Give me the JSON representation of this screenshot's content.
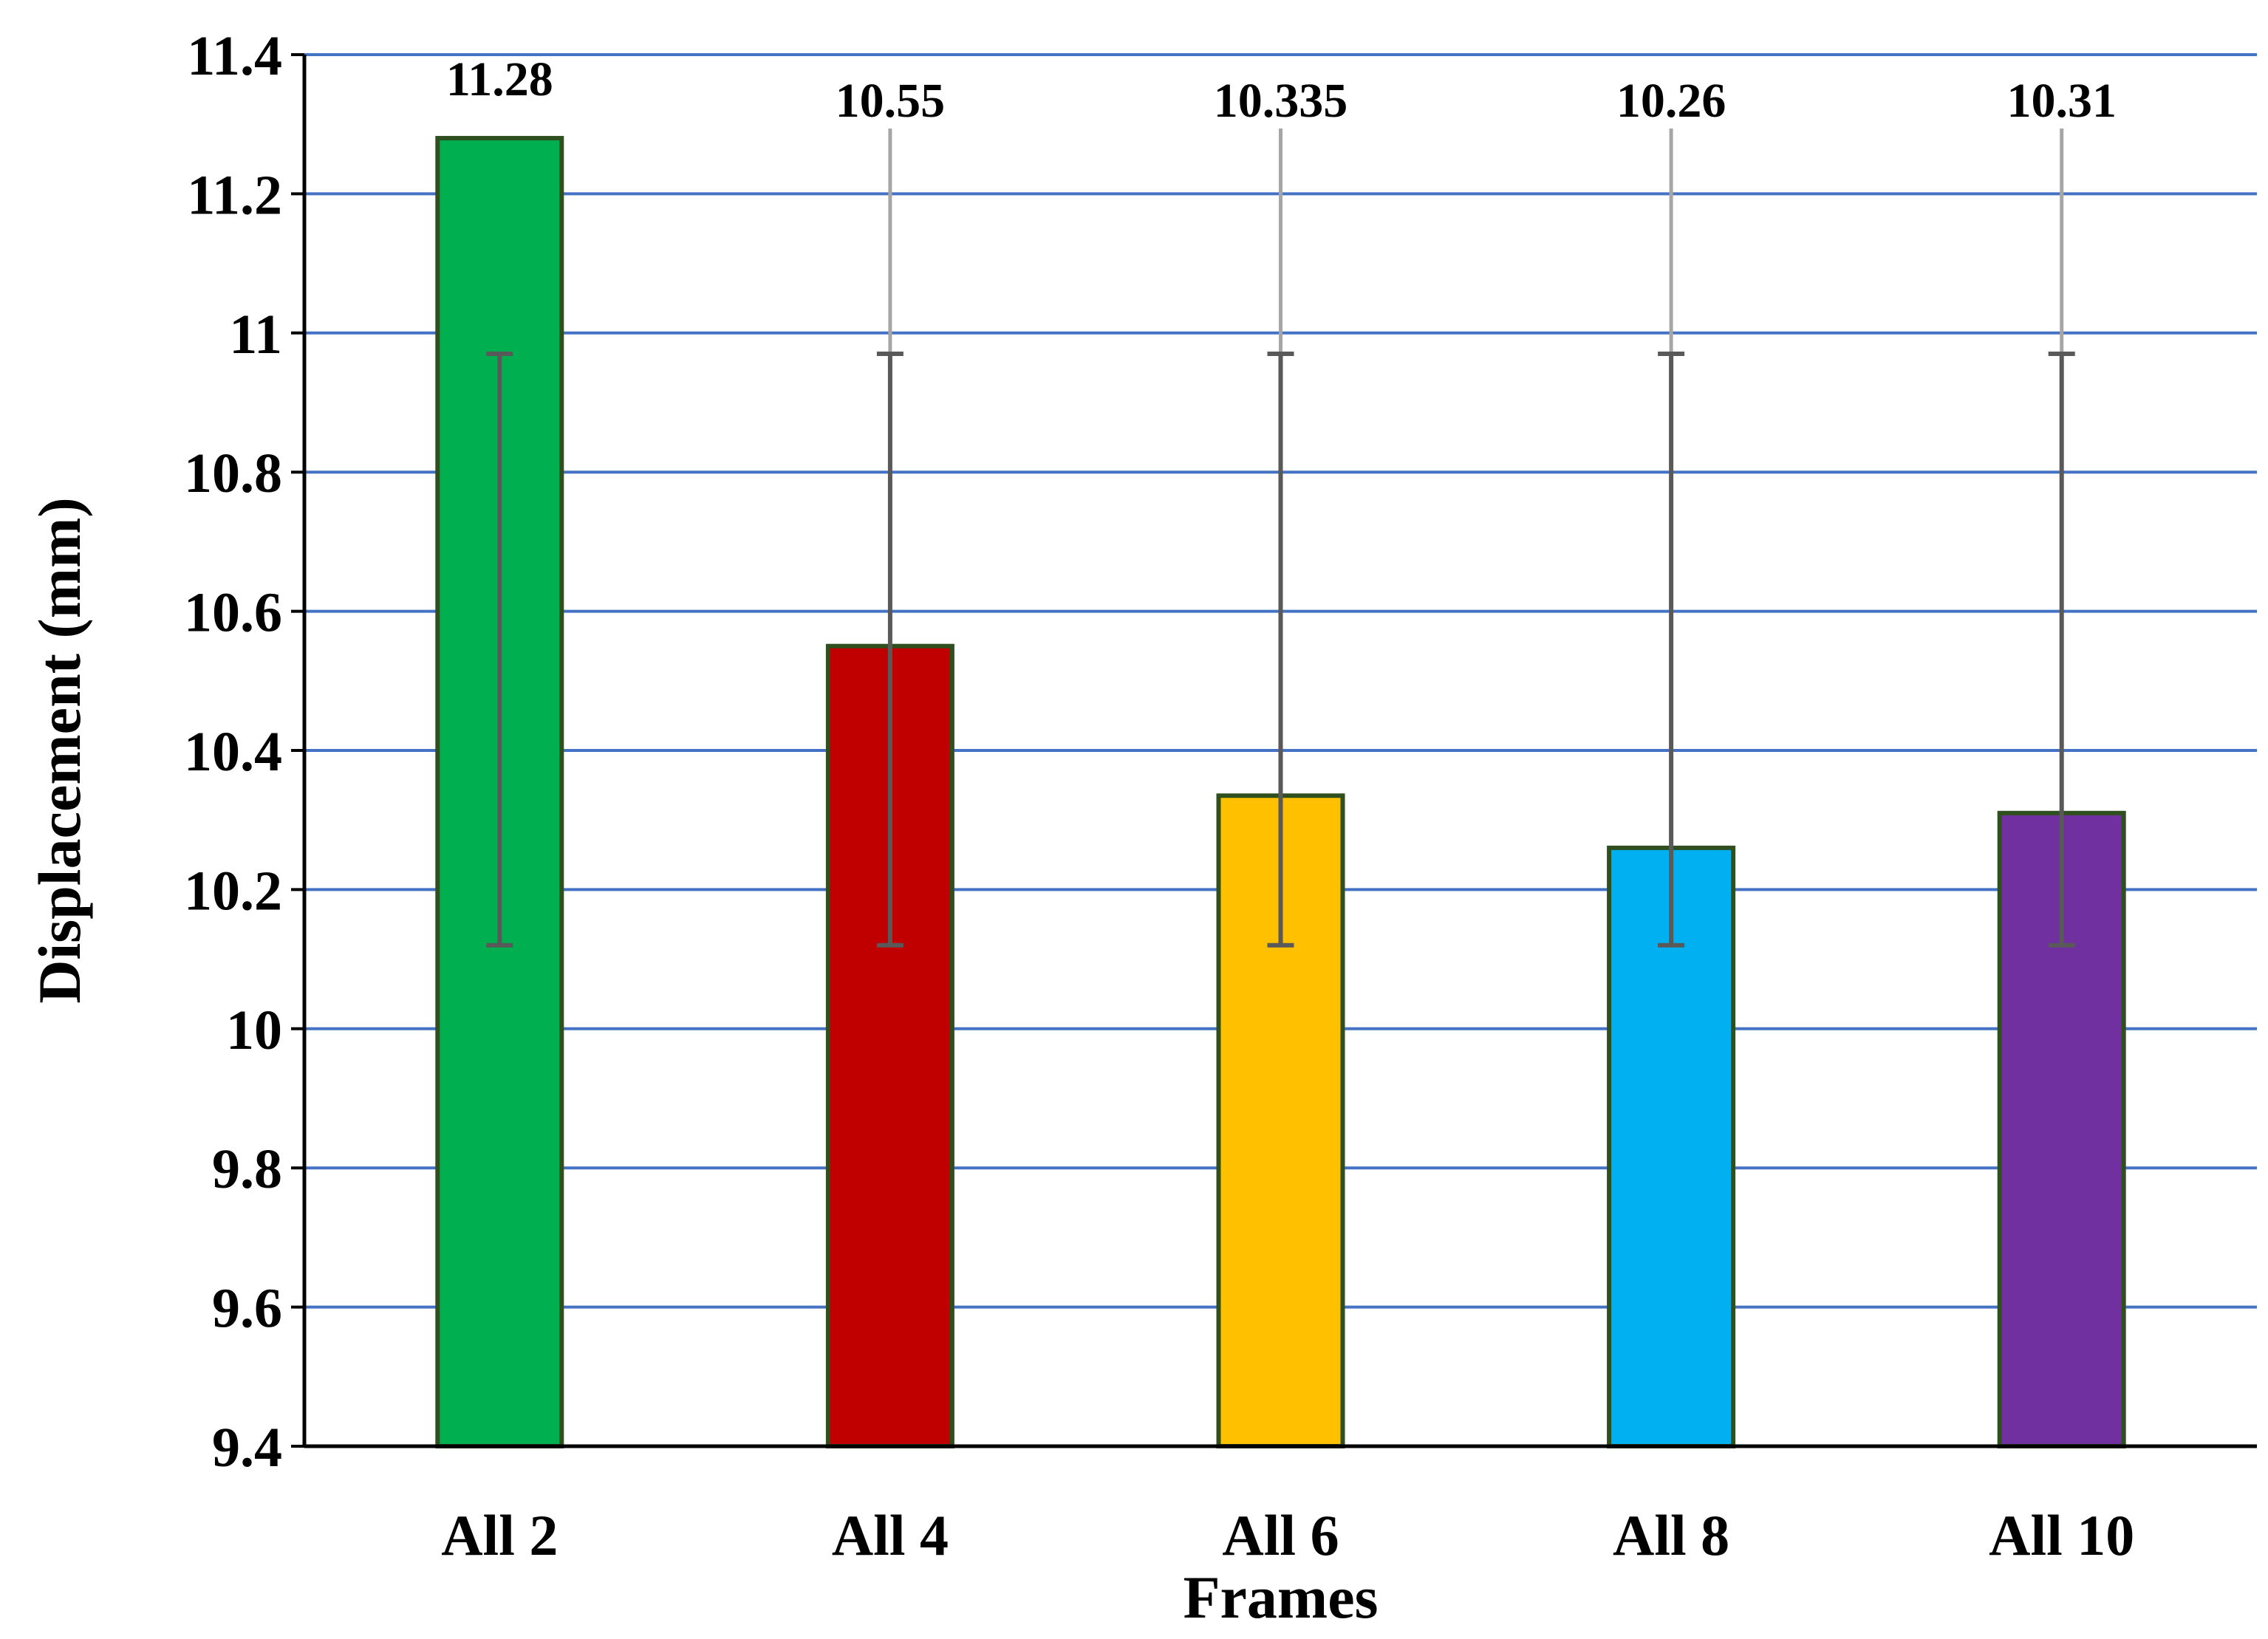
{
  "chart_data": {
    "type": "bar",
    "xlabel": "Frames",
    "ylabel": "Displacement (mm)",
    "ylim": [
      9.4,
      11.4
    ],
    "ytick_step": 0.2,
    "yticks": [
      "9.4",
      "9.6",
      "9.8",
      "10",
      "10.2",
      "10.4",
      "10.6",
      "10.8",
      "11",
      "11.2",
      "11.4"
    ],
    "grid": true,
    "legend": "none",
    "categories": [
      "All 2",
      "All 4",
      "All 6",
      "All 8",
      "All 10"
    ],
    "values": [
      11.28,
      10.55,
      10.335,
      10.26,
      10.31
    ],
    "value_labels": [
      "11.28",
      "10.55",
      "10.335",
      "10.26",
      "10.31"
    ],
    "error_bars": [
      {
        "low": 10.12,
        "high": 10.97
      },
      {
        "low": 10.12,
        "high": 10.97
      },
      {
        "low": 10.12,
        "high": 10.97
      },
      {
        "low": 10.12,
        "high": 10.97
      },
      {
        "low": 10.12,
        "high": 10.97
      }
    ],
    "bar_colors": [
      "#00B050",
      "#C00000",
      "#FFC000",
      "#00B0F0",
      "#7030A0"
    ],
    "bar_edge_color": "#2F4F1F",
    "grid_color": "#4472C4",
    "error_bar_color": "#595959",
    "label_leader_color": "#A6A6A6"
  }
}
